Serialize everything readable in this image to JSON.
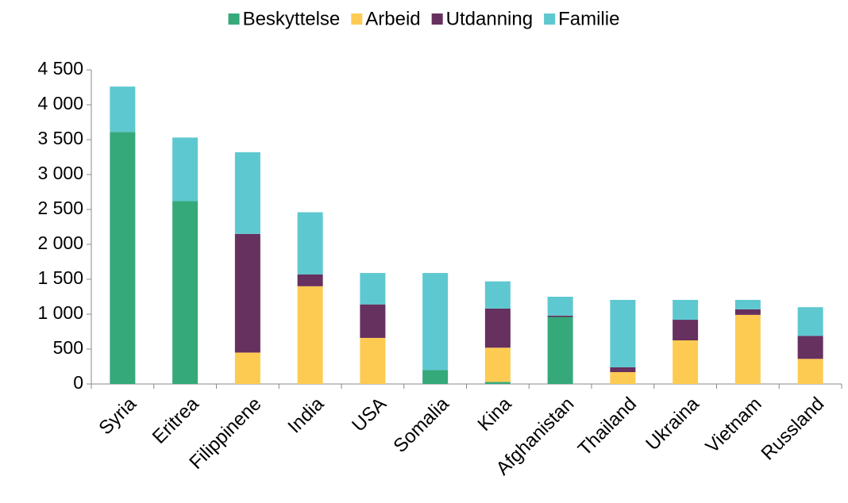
{
  "chart_data": {
    "type": "stacked_bar",
    "categories": [
      "Syria",
      "Eritrea",
      "Filippinene",
      "India",
      "USA",
      "Somalia",
      "Kina",
      "Afghanistan",
      "Thailand",
      "Ukraina",
      "Vietnam",
      "Russland"
    ],
    "series": [
      {
        "name": "Beskyttelse",
        "color": "#36a97a",
        "values": [
          3610,
          2620,
          0,
          0,
          0,
          200,
          30,
          960,
          0,
          0,
          0,
          0
        ]
      },
      {
        "name": "Arbeid",
        "color": "#fecb52",
        "values": [
          0,
          0,
          450,
          1400,
          660,
          0,
          490,
          0,
          170,
          625,
          990,
          360
        ]
      },
      {
        "name": "Utdanning",
        "color": "#66305f",
        "values": [
          0,
          0,
          1700,
          170,
          480,
          0,
          560,
          20,
          70,
          295,
          80,
          330
        ]
      },
      {
        "name": "Familie",
        "color": "#5ec8d0",
        "values": [
          650,
          910,
          1170,
          890,
          450,
          1390,
          390,
          270,
          965,
          285,
          135,
          410
        ]
      }
    ],
    "ylim": [
      0,
      4500
    ],
    "yticks": [
      0,
      500,
      {
        "value": 1000,
        "label": "1 000"
      },
      {
        "value": 1500,
        "label": "1 500"
      },
      {
        "value": 2000,
        "label": "2 000"
      },
      {
        "value": 2500,
        "label": "2 500"
      },
      {
        "value": 3000,
        "label": "3 000"
      },
      {
        "value": 3500,
        "label": "3 500"
      },
      {
        "value": 4000,
        "label": "4 000"
      },
      {
        "value": 4500,
        "label": "4 500"
      }
    ],
    "legend": "top"
  }
}
